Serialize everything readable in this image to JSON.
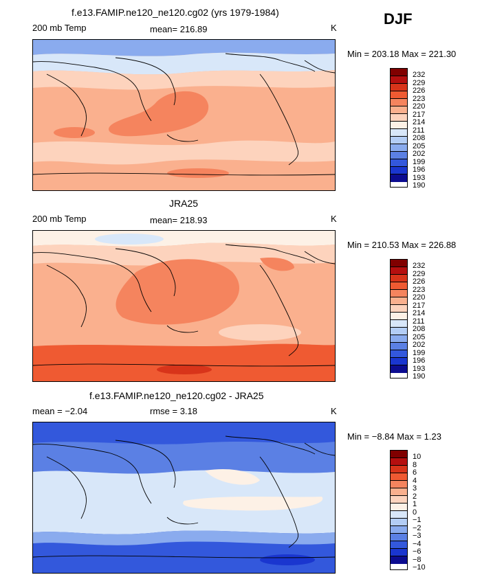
{
  "season": "DJF",
  "panels": [
    {
      "title": "f.e13.FAMIP.ne120_ne120.cg02 (yrs 1979-1984)",
      "left_label": "200 mb Temp",
      "center_label": "mean= 216.89",
      "units": "K",
      "minmax": "Min = 203.18 Max = 221.30",
      "levels": [
        "232",
        "229",
        "226",
        "223",
        "220",
        "217",
        "214",
        "211",
        "208",
        "205",
        "202",
        "199",
        "196",
        "193",
        "190"
      ]
    },
    {
      "title": "JRA25",
      "left_label": "200 mb Temp",
      "center_label": "mean= 218.93",
      "units": "K",
      "minmax": "Min = 210.53 Max = 226.88",
      "levels": [
        "232",
        "229",
        "226",
        "223",
        "220",
        "217",
        "214",
        "211",
        "208",
        "205",
        "202",
        "199",
        "196",
        "193",
        "190"
      ]
    },
    {
      "title": "f.e13.FAMIP.ne120_ne120.cg02 - JRA25",
      "left_label": "mean =  −2.04",
      "center_label": "rmse =    3.18",
      "units": "K",
      "minmax": "Min =  −8.84 Max =    1.23",
      "levels": [
        "10",
        "8",
        "6",
        "4",
        "3",
        "2",
        "1",
        "0",
        "−1",
        "−2",
        "−3",
        "−4",
        "−6",
        "−8",
        "−10"
      ]
    }
  ],
  "colorbar_colors": [
    "#800000",
    "#b50f0f",
    "#d8341a",
    "#ef5a32",
    "#f5845e",
    "#fab08e",
    "#fdd3bd",
    "#fdf1e6",
    "#d8e7f9",
    "#b3cdf5",
    "#8aabee",
    "#5b80e4",
    "#3358dc",
    "#1a36cf",
    "#0c0c90"
  ],
  "chart_data": [
    {
      "type": "heatmap",
      "title": "f.e13.FAMIP.ne120_ne120.cg02 (yrs 1979-1984)",
      "variable": "200 mb Temp",
      "units": "K",
      "mean": 216.89,
      "min": 203.18,
      "max": 221.3,
      "contour_levels": [
        190,
        193,
        196,
        199,
        202,
        205,
        208,
        211,
        214,
        217,
        220,
        223,
        226,
        229,
        232
      ]
    },
    {
      "type": "heatmap",
      "title": "JRA25",
      "variable": "200 mb Temp",
      "units": "K",
      "mean": 218.93,
      "min": 210.53,
      "max": 226.88,
      "contour_levels": [
        190,
        193,
        196,
        199,
        202,
        205,
        208,
        211,
        214,
        217,
        220,
        223,
        226,
        229,
        232
      ]
    },
    {
      "type": "heatmap",
      "title": "f.e13.FAMIP.ne120_ne120.cg02 - JRA25",
      "units": "K",
      "mean": -2.04,
      "rmse": 3.18,
      "min": -8.84,
      "max": 1.23,
      "contour_levels": [
        -10,
        -8,
        -6,
        -4,
        -3,
        -2,
        -1,
        0,
        1,
        2,
        3,
        4,
        6,
        8,
        10
      ]
    }
  ]
}
